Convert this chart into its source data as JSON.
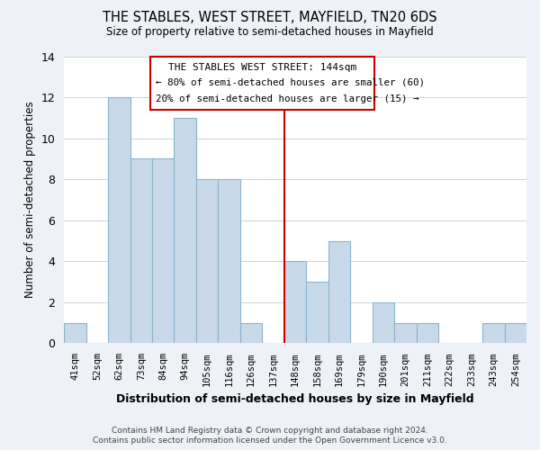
{
  "title": "THE STABLES, WEST STREET, MAYFIELD, TN20 6DS",
  "subtitle": "Size of property relative to semi-detached houses in Mayfield",
  "xlabel": "Distribution of semi-detached houses by size in Mayfield",
  "ylabel": "Number of semi-detached properties",
  "bar_color": "#c8daea",
  "bar_edge_color": "#8ab4cc",
  "categories": [
    "41sqm",
    "52sqm",
    "62sqm",
    "73sqm",
    "84sqm",
    "94sqm",
    "105sqm",
    "116sqm",
    "126sqm",
    "137sqm",
    "148sqm",
    "158sqm",
    "169sqm",
    "179sqm",
    "190sqm",
    "201sqm",
    "211sqm",
    "222sqm",
    "233sqm",
    "243sqm",
    "254sqm"
  ],
  "values": [
    1,
    0,
    12,
    9,
    9,
    11,
    8,
    8,
    1,
    0,
    4,
    3,
    5,
    0,
    2,
    1,
    1,
    0,
    0,
    1,
    1
  ],
  "ylim": [
    0,
    14
  ],
  "yticks": [
    0,
    2,
    4,
    6,
    8,
    10,
    12,
    14
  ],
  "marker_label": "THE STABLES WEST STREET: 144sqm",
  "annotation_line1": "← 80% of semi-detached houses are smaller (60)",
  "annotation_line2": "20% of semi-detached houses are larger (15) →",
  "marker_color": "#cc0000",
  "footer_line1": "Contains HM Land Registry data © Crown copyright and database right 2024.",
  "footer_line2": "Contains public sector information licensed under the Open Government Licence v3.0.",
  "bg_color": "#eef2f7",
  "plot_bg_color": "#ffffff",
  "grid_color": "#c8d4e0"
}
